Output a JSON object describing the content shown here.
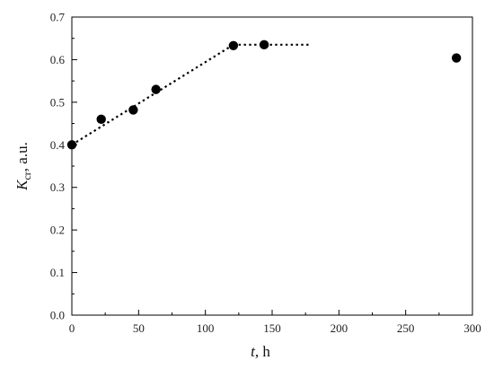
{
  "chart_data": {
    "type": "scatter",
    "title": "",
    "xlabel": {
      "symbol": "t",
      "rest": ", h"
    },
    "ylabel": {
      "symbol": "K",
      "subscript": "cr",
      "rest": ", a.u."
    },
    "xlim": [
      0,
      300
    ],
    "ylim": [
      0.0,
      0.7
    ],
    "x_ticks": [
      0,
      50,
      100,
      150,
      200,
      250,
      300
    ],
    "y_ticks": [
      0.0,
      0.1,
      0.2,
      0.3,
      0.4,
      0.5,
      0.6,
      0.7
    ],
    "x_tick_labels": [
      "0",
      "50",
      "100",
      "150",
      "200",
      "250",
      "300"
    ],
    "y_tick_labels": [
      "0.0",
      "0.1",
      "0.2",
      "0.3",
      "0.4",
      "0.5",
      "0.6",
      "0.7"
    ],
    "grid": false,
    "legend": "none",
    "series": [
      {
        "marker": "filled-circle",
        "color": "#000000",
        "x": [
          0,
          22,
          46,
          63,
          121,
          144,
          288
        ],
        "y": [
          0.4,
          0.46,
          0.482,
          0.53,
          0.633,
          0.635,
          0.604
        ]
      }
    ],
    "trend_lines": [
      {
        "style": "dotted",
        "color": "#000000",
        "x": [
          0,
          121
        ],
        "y": [
          0.4,
          0.635
        ]
      },
      {
        "style": "dotted",
        "color": "#000000",
        "x": [
          121,
          178
        ],
        "y": [
          0.635,
          0.635
        ]
      }
    ]
  }
}
